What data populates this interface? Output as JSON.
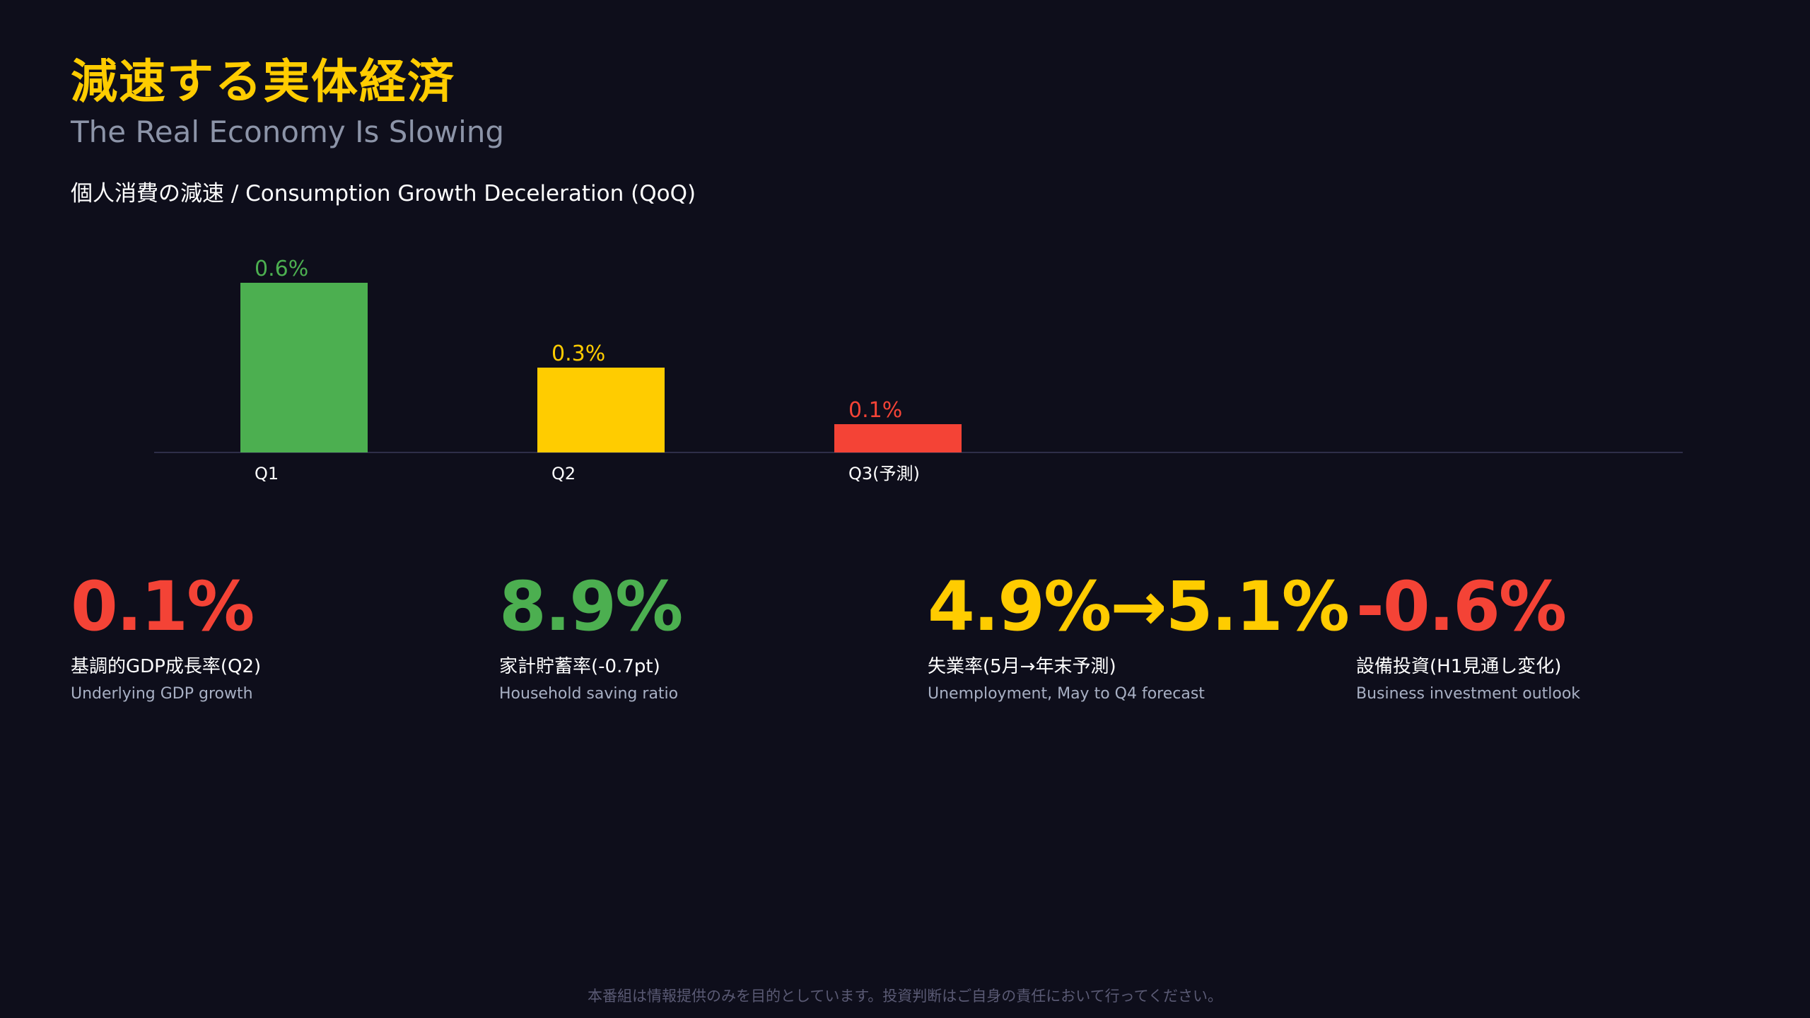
{
  "header": {
    "title": "減速する実体経済",
    "subtitle": "The Real Economy Is Slowing"
  },
  "chart_data": {
    "type": "bar",
    "title": "個人消費の減速 / Consumption Growth Deceleration (QoQ)",
    "categories": [
      "Q1",
      "Q2",
      "Q3(予測)"
    ],
    "values": [
      0.6,
      0.3,
      0.1
    ],
    "value_labels": [
      "0.6%",
      "0.3%",
      "0.1%"
    ],
    "colors": [
      "#4caf50",
      "#ffcc00",
      "#f44336"
    ],
    "ylim": [
      0,
      0.6
    ],
    "grid": false,
    "legend": "none"
  },
  "stats": [
    {
      "value": "0.1%",
      "label": "基調的GDP成長率(Q2)",
      "sub": "Underlying GDP growth",
      "color": "#f44336"
    },
    {
      "value": "8.9%",
      "label": "家計貯蓄率(-0.7pt)",
      "sub": "Household saving ratio",
      "color": "#4caf50"
    },
    {
      "value": "4.9%→5.1%",
      "label": "失業率(5月→年末予測)",
      "sub": "Unemployment, May to Q4 forecast",
      "color": "#ffcc00"
    },
    {
      "value": "-0.6%",
      "label": "設備投資(H1見通し変化)",
      "sub": "Business investment outlook",
      "color": "#f44336"
    }
  ],
  "footer": {
    "disclaimer": "本番組は情報提供のみを目的としています。投資判断はご自身の責任において行ってください。"
  },
  "colors": {
    "background": "#0e0e1b",
    "accent": "#ffcc00",
    "axis": "#2e2e48"
  }
}
